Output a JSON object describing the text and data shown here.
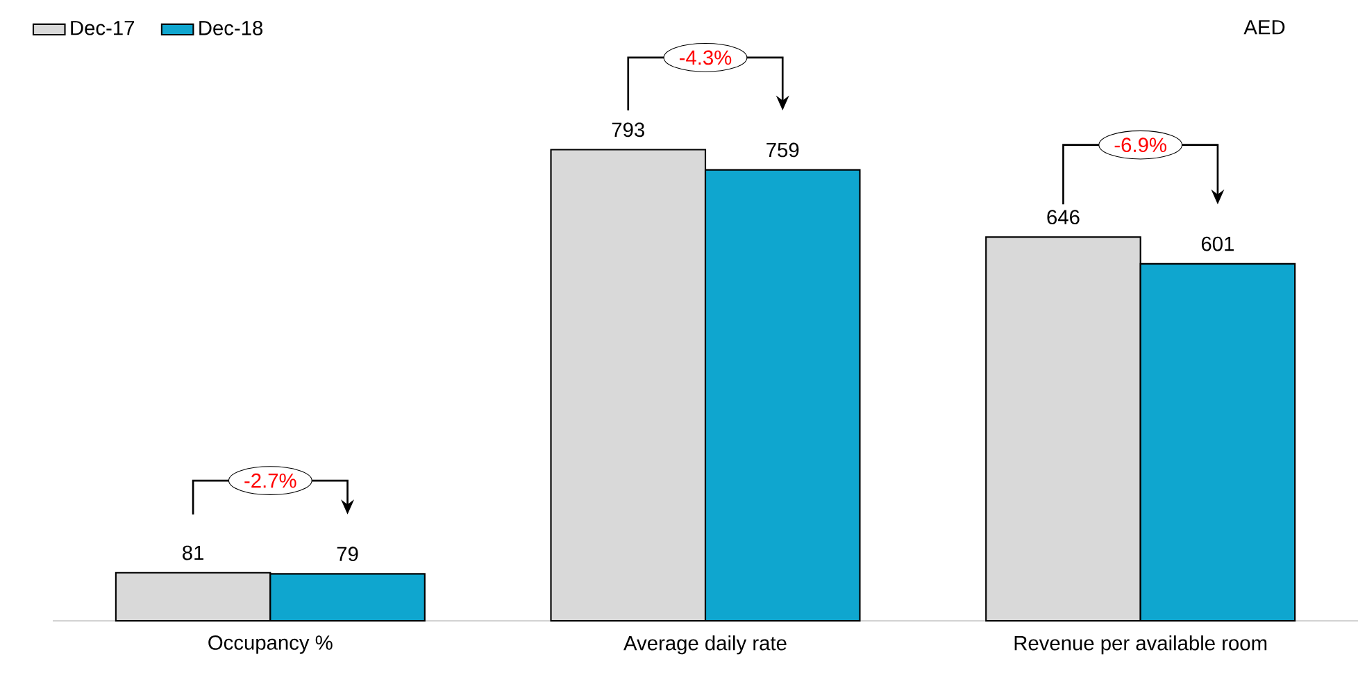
{
  "chart_data": {
    "type": "bar",
    "categories": [
      "Occupancy %",
      "Average daily rate",
      "Revenue per available room"
    ],
    "series": [
      {
        "name": "Dec-17",
        "color": "#d9d9d9",
        "values": [
          81,
          793,
          646
        ]
      },
      {
        "name": "Dec-18",
        "color": "#0fa6cf",
        "values": [
          79,
          759,
          601
        ]
      }
    ],
    "data_labels": true,
    "legend": "top left",
    "annotations": [
      "-2.7%",
      "-4.3%",
      "-6.9%",
      "AED"
    ]
  }
}
